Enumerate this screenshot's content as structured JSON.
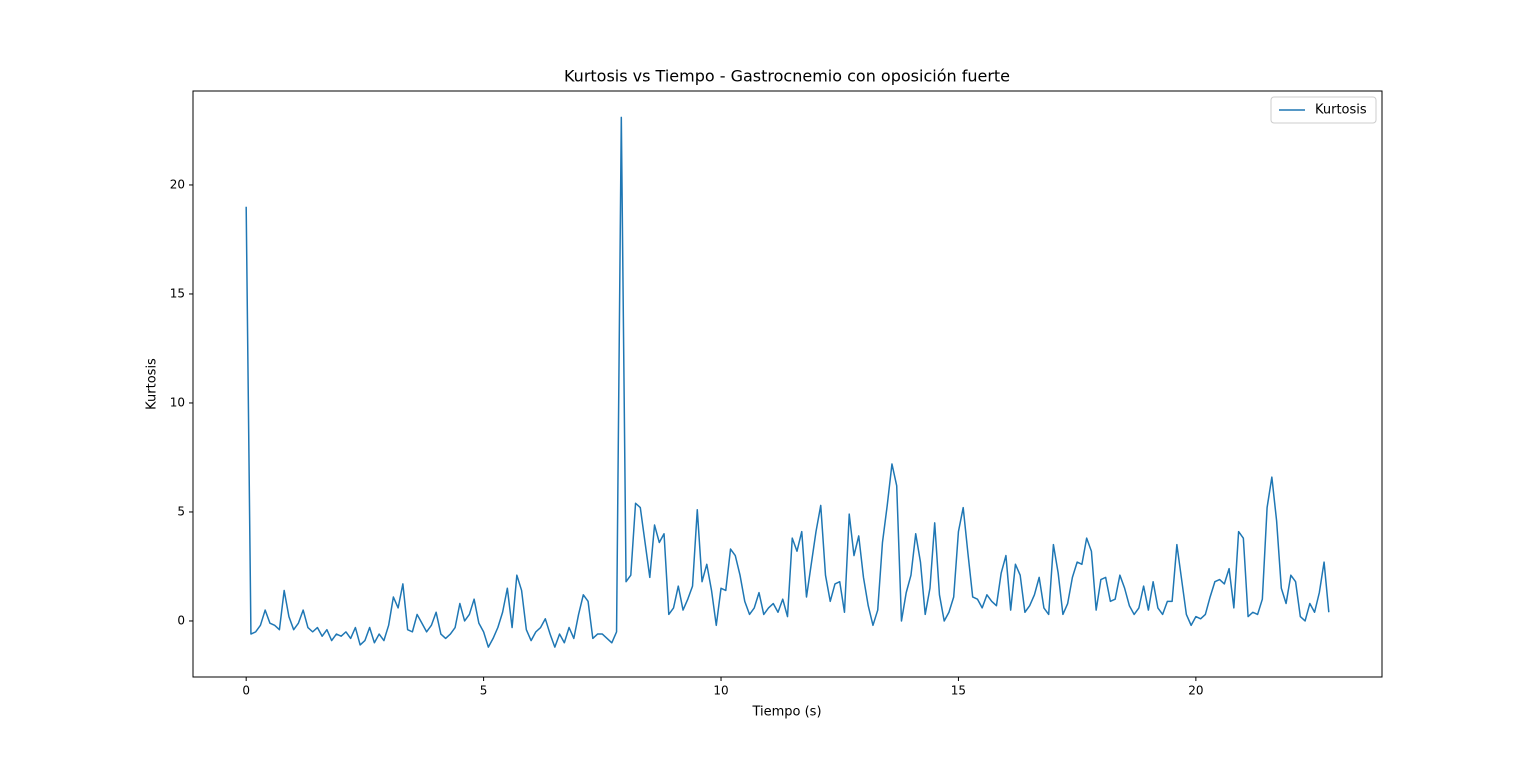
{
  "chart_data": {
    "type": "line",
    "title": "Kurtosis vs Tiempo - Gastrocnemio con oposición fuerte",
    "x_label": "Tiempo (s)",
    "y_label": "Kurtosis",
    "xlim": [
      -1.12,
      23.92
    ],
    "ylim": [
      -2.57,
      24.31
    ],
    "xticks": [
      0,
      5,
      10,
      15,
      20
    ],
    "yticks": [
      0,
      5,
      10,
      15,
      20
    ],
    "legend": "upper right",
    "x": [
      0,
      0.1,
      0.2,
      0.3,
      0.4,
      0.5,
      0.6,
      0.7,
      0.8,
      0.9,
      1,
      1.1,
      1.2,
      1.3,
      1.4,
      1.5,
      1.6,
      1.7,
      1.8,
      1.9,
      2,
      2.1,
      2.2,
      2.3,
      2.4,
      2.5,
      2.6,
      2.7,
      2.8,
      2.9,
      3,
      3.1,
      3.2,
      3.3,
      3.4,
      3.5,
      3.6,
      3.7,
      3.8,
      3.9,
      4,
      4.1,
      4.2,
      4.3,
      4.4,
      4.5,
      4.6,
      4.7,
      4.8,
      4.9,
      5,
      5.1,
      5.2,
      5.3,
      5.4,
      5.5,
      5.6,
      5.7,
      5.8,
      5.9,
      6,
      6.1,
      6.2,
      6.3,
      6.4,
      6.5,
      6.6,
      6.7,
      6.8,
      6.9,
      7,
      7.1,
      7.2,
      7.3,
      7.4,
      7.5,
      7.6,
      7.7,
      7.8,
      7.9,
      8,
      8.1,
      8.2,
      8.3,
      8.4,
      8.5,
      8.6,
      8.7,
      8.8,
      8.9,
      9,
      9.1,
      9.2,
      9.3,
      9.4,
      9.5,
      9.6,
      9.7,
      9.8,
      9.9,
      10,
      10.1,
      10.2,
      10.3,
      10.4,
      10.5,
      10.6,
      10.7,
      10.8,
      10.9,
      11,
      11.1,
      11.2,
      11.3,
      11.4,
      11.5,
      11.6,
      11.7,
      11.8,
      11.9,
      12,
      12.1,
      12.2,
      12.3,
      12.4,
      12.5,
      12.6,
      12.7,
      12.8,
      12.9,
      13,
      13.1,
      13.2,
      13.3,
      13.4,
      13.5,
      13.6,
      13.7,
      13.8,
      13.9,
      14,
      14.1,
      14.2,
      14.3,
      14.4,
      14.5,
      14.6,
      14.7,
      14.8,
      14.9,
      15,
      15.1,
      15.2,
      15.3,
      15.4,
      15.5,
      15.6,
      15.7,
      15.8,
      15.9,
      16,
      16.1,
      16.2,
      16.3,
      16.4,
      16.5,
      16.6,
      16.7,
      16.8,
      16.9,
      17,
      17.1,
      17.2,
      17.3,
      17.4,
      17.5,
      17.6,
      17.7,
      17.8,
      17.9,
      18,
      18.1,
      18.2,
      18.3,
      18.4,
      18.5,
      18.6,
      18.7,
      18.8,
      18.9,
      19,
      19.1,
      19.2,
      19.3,
      19.4,
      19.5,
      19.6,
      19.7,
      19.8,
      19.9,
      20,
      20.1,
      20.2,
      20.3,
      20.4,
      20.5,
      20.6,
      20.7,
      20.8,
      20.9,
      21,
      21.1,
      21.2,
      21.3,
      21.4,
      21.5,
      21.6,
      21.7,
      21.8,
      21.9,
      22,
      22.1,
      22.2,
      22.3,
      22.4,
      22.5,
      22.6,
      22.7,
      22.8
    ],
    "series": [
      {
        "name": "Kurtosis",
        "color": "#1f77b4",
        "values": [
          19,
          -0.6,
          -0.5,
          -0.2,
          0.5,
          -0.1,
          -0.2,
          -0.4,
          1.4,
          0.2,
          -0.4,
          -0.1,
          0.5,
          -0.3,
          -0.5,
          -0.3,
          -0.7,
          -0.4,
          -0.9,
          -0.6,
          -0.7,
          -0.5,
          -0.8,
          -0.3,
          -1.1,
          -0.9,
          -0.3,
          -1,
          -0.6,
          -0.9,
          -0.2,
          1.1,
          0.6,
          1.7,
          -0.4,
          -0.5,
          0.3,
          -0.1,
          -0.5,
          -0.2,
          0.4,
          -0.6,
          -0.8,
          -0.6,
          -0.3,
          0.8,
          0,
          0.3,
          1,
          -0.1,
          -0.5,
          -1.2,
          -0.8,
          -0.3,
          0.4,
          1.5,
          -0.3,
          2.1,
          1.4,
          -0.4,
          -0.9,
          -0.5,
          -0.3,
          0.1,
          -0.6,
          -1.2,
          -0.6,
          -1,
          -0.3,
          -0.8,
          0.3,
          1.2,
          0.9,
          -0.8,
          -0.6,
          -0.6,
          -0.8,
          -1,
          -0.5,
          23.1,
          1.8,
          2.1,
          5.4,
          5.2,
          3.6,
          2,
          4.4,
          3.6,
          4,
          0.3,
          0.6,
          1.6,
          0.5,
          1,
          1.6,
          5.1,
          1.8,
          2.6,
          1.4,
          -0.2,
          1.5,
          1.4,
          3.3,
          3,
          2.1,
          0.9,
          0.3,
          0.6,
          1.3,
          0.3,
          0.6,
          0.8,
          0.4,
          1,
          0.2,
          3.8,
          3.2,
          4.1,
          1.1,
          2.6,
          4.1,
          5.3,
          2.1,
          0.9,
          1.7,
          1.8,
          0.4,
          4.9,
          3,
          3.9,
          2,
          0.7,
          -0.2,
          0.5,
          3.6,
          5.3,
          7.2,
          6.2,
          0,
          1.3,
          2.1,
          4,
          2.7,
          0.3,
          1.5,
          4.5,
          1.2,
          0,
          0.4,
          1.1,
          4.1,
          5.2,
          3.1,
          1.1,
          1,
          0.6,
          1.2,
          0.9,
          0.7,
          2.2,
          3,
          0.5,
          2.6,
          2.1,
          0.4,
          0.7,
          1.2,
          2,
          0.6,
          0.3,
          3.5,
          2.2,
          0.3,
          0.8,
          2,
          2.7,
          2.6,
          3.8,
          3.2,
          0.5,
          1.9,
          2,
          0.9,
          1,
          2.1,
          1.5,
          0.7,
          0.3,
          0.6,
          1.6,
          0.5,
          1.8,
          0.6,
          0.3,
          0.9,
          0.9,
          3.5,
          1.9,
          0.3,
          -0.2,
          0.2,
          0.1,
          0.3,
          1.1,
          1.8,
          1.9,
          1.7,
          2.4,
          0.6,
          4.1,
          3.8,
          0.2,
          0.4,
          0.3,
          1,
          5.2,
          6.6,
          4.6,
          1.5,
          0.8,
          2.1,
          1.8,
          0.2,
          0,
          0.8,
          0.4,
          1.3,
          2.7,
          0.4
        ]
      }
    ]
  }
}
